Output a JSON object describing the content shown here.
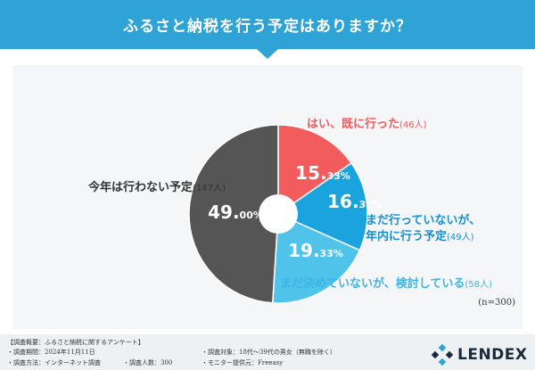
{
  "header": {
    "title": "ふるさと納税を行う予定はありますか？"
  },
  "chart_data": {
    "type": "pie",
    "title": "ふるさと納税を行う予定はありますか？",
    "unit": "%",
    "sample_size": "(n=300)",
    "slices": [
      {
        "label": "はい、既に行った",
        "count": "(46人)",
        "value": 15.33,
        "percent_main": "15.",
        "percent_dec": "33%",
        "color": "#f25c5c"
      },
      {
        "label_lines": [
          "まだ行っていないが、",
          "年内に行う予定"
        ],
        "count": "(49人)",
        "value": 16.33,
        "percent_main": "16.",
        "percent_dec": "33%",
        "color": "#1aa3dc"
      },
      {
        "label": "まだ決めていないが、検討している",
        "count": "(58人)",
        "value": 19.33,
        "percent_main": "19.",
        "percent_dec": "33%",
        "color": "#4fc3ea"
      },
      {
        "label": "今年は行わない予定",
        "count": "(147人)",
        "value": 49.0,
        "percent_main": "49.",
        "percent_dec": "00%",
        "color": "#555555"
      }
    ]
  },
  "footer": {
    "overview": "【調査概要：ふるさと納税に関するアンケート】",
    "period": "・調査期間：2024年11月11日",
    "method": "・調査方法：インターネット調査",
    "respondents": "・調査人数：300",
    "target": "・調査対象：18代〜39代の男女（無職を除く）",
    "provider": "・モニター提供元：Freeasy"
  },
  "logo": {
    "text": "LENDEX",
    "icon": "lendex-logo-icon",
    "colors": [
      "#1a2a3a",
      "#2fa3d6"
    ]
  }
}
